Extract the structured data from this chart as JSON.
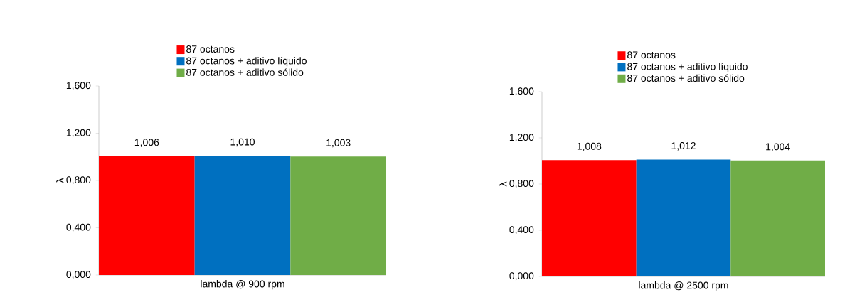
{
  "chart_data": [
    {
      "type": "bar",
      "categories": [
        "lambda @ 900 rpm"
      ],
      "ylabel": "λ",
      "ylim": [
        0,
        1.6
      ],
      "yticks": [
        {
          "value": 0,
          "label": "0,000"
        },
        {
          "value": 0.4,
          "label": "0,400"
        },
        {
          "value": 0.8,
          "label": "0,800"
        },
        {
          "value": 1.2,
          "label": "1,200"
        },
        {
          "value": 1.6,
          "label": "1,600"
        }
      ],
      "legend": "top",
      "series": [
        {
          "name": "87 octanos",
          "color": "#ff0000",
          "values": [
            1.006
          ],
          "value_labels": [
            "1,006"
          ]
        },
        {
          "name": "87 octanos + aditivo líquido",
          "color": "#0070c0",
          "values": [
            1.01
          ],
          "value_labels": [
            "1,010"
          ]
        },
        {
          "name": "87 octanos + aditivo sólido",
          "color": "#70ad47",
          "values": [
            1.003
          ],
          "value_labels": [
            "1,003"
          ]
        }
      ]
    },
    {
      "type": "bar",
      "categories": [
        "lambda @ 2500 rpm"
      ],
      "ylabel": "λ",
      "ylim": [
        0,
        1.6
      ],
      "yticks": [
        {
          "value": 0,
          "label": "0,000"
        },
        {
          "value": 0.4,
          "label": "0,400"
        },
        {
          "value": 0.8,
          "label": "0,800"
        },
        {
          "value": 1.2,
          "label": "1,200"
        },
        {
          "value": 1.6,
          "label": "1,600"
        }
      ],
      "legend": "top",
      "series": [
        {
          "name": "87 octanos",
          "color": "#ff0000",
          "values": [
            1.008
          ],
          "value_labels": [
            "1,008"
          ]
        },
        {
          "name": "87 octanos + aditivo líquido",
          "color": "#0070c0",
          "values": [
            1.012
          ],
          "value_labels": [
            "1,012"
          ]
        },
        {
          "name": "87 octanos + aditivo sólido",
          "color": "#70ad47",
          "values": [
            1.004
          ],
          "value_labels": [
            "1,004"
          ]
        }
      ]
    }
  ]
}
